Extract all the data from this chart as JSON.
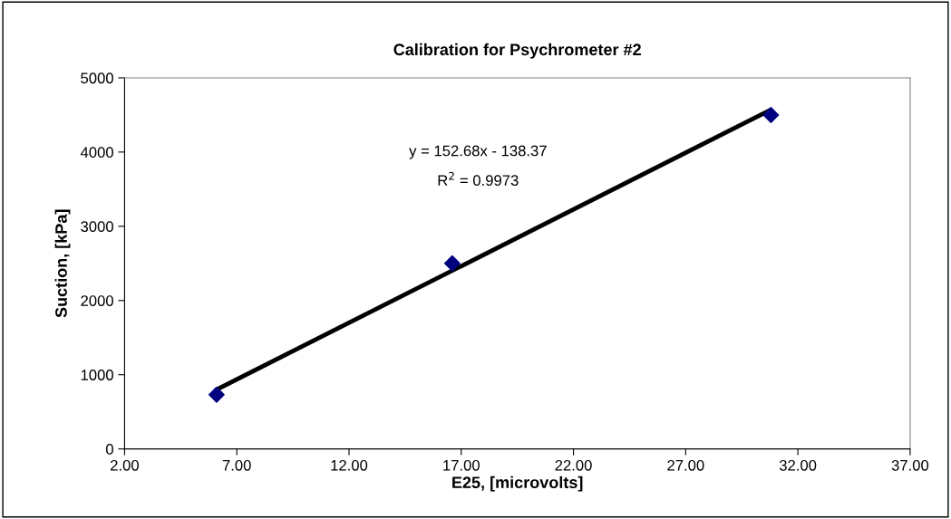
{
  "chart_data": {
    "type": "scatter",
    "title": "Calibration for Psychrometer #2",
    "xlabel": "E25, [microvolts]",
    "ylabel": "Suction, [kPa]",
    "x": [
      6.1,
      16.6,
      30.8
    ],
    "series": [
      {
        "color": "#000080",
        "values": [
          730,
          2500,
          4500
        ],
        "marker": "diamond"
      },
      {
        "type": "line",
        "color": "#000000",
        "x": [
          6.1,
          30.8
        ],
        "values": [
          800,
          4570
        ],
        "marker": "none"
      }
    ],
    "annotations": [
      "y = 152.68x - 138.37",
      "R$^{2}$ = 0.9973"
    ],
    "xlim": [
      2,
      37
    ],
    "xticks": [
      {
        "value": 2,
        "label": "2.00"
      },
      {
        "value": 7,
        "label": "7.00"
      },
      {
        "value": 12,
        "label": "12.00"
      },
      {
        "value": 17,
        "label": "17.00"
      },
      {
        "value": 22,
        "label": "22.00"
      },
      {
        "value": 27,
        "label": "27.00"
      },
      {
        "value": 32,
        "label": "32.00"
      },
      {
        "value": 37,
        "label": "37.00"
      }
    ],
    "ylim": [
      0,
      5000
    ],
    "yticks": [
      0,
      1000,
      2000,
      3000,
      4000,
      5000
    ],
    "grid": false,
    "legend": false
  }
}
